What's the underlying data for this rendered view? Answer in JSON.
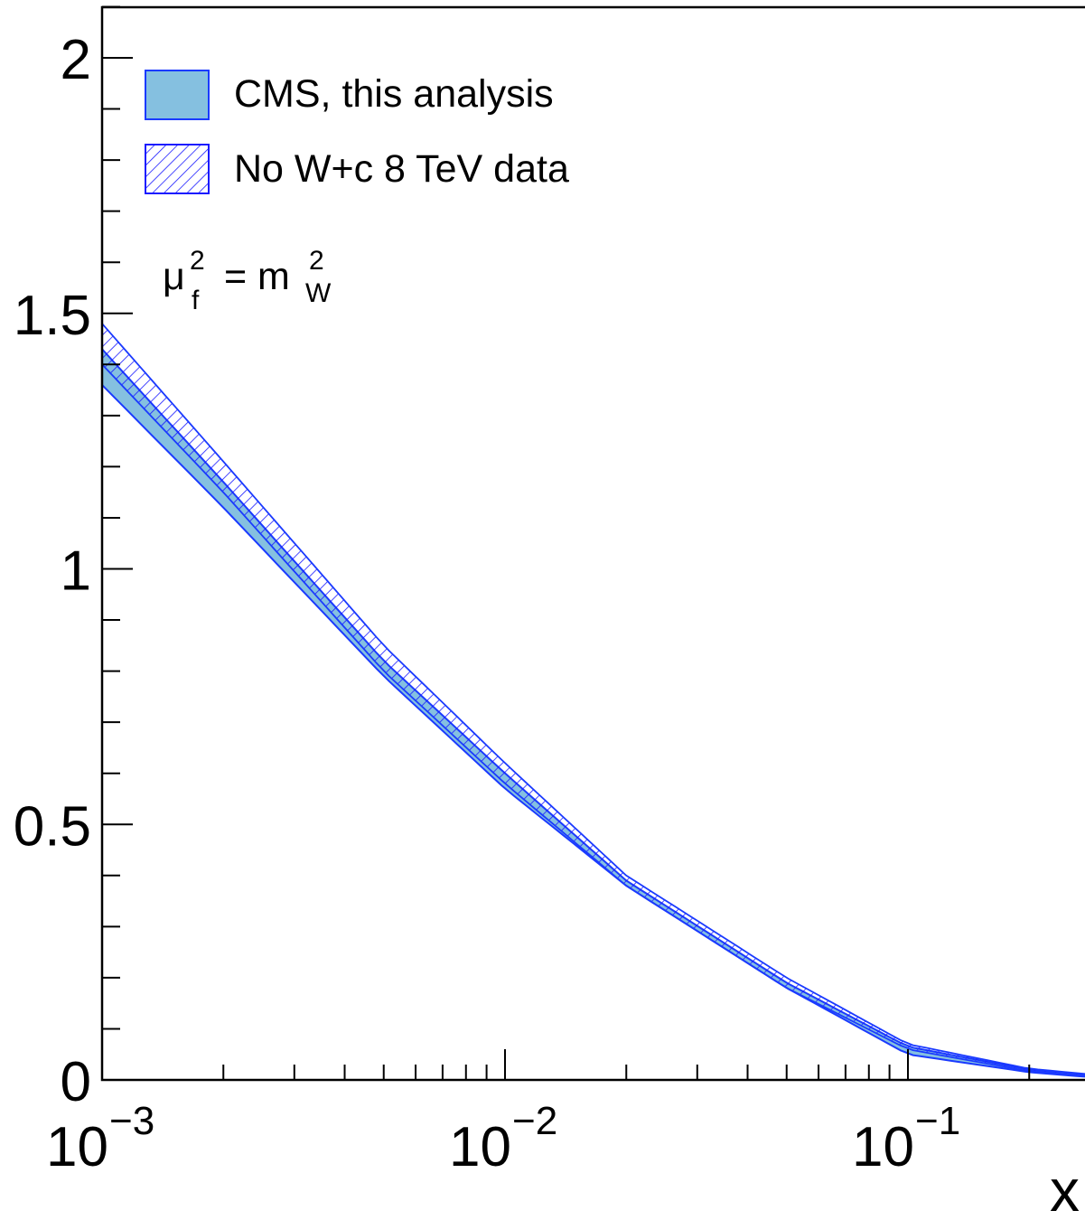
{
  "chart_data": {
    "type": "area",
    "title": "",
    "xlabel": "x",
    "ylabel": "",
    "xscale": "log",
    "xlim": [
      0.001,
      0.3
    ],
    "ylim": [
      0,
      2.1
    ],
    "grid": false,
    "legend_position": "top-left",
    "x_tick_labels": [
      {
        "x": 0.001,
        "base": "10",
        "exp": "−3"
      },
      {
        "x": 0.01,
        "base": "10",
        "exp": "−2"
      },
      {
        "x": 0.1,
        "base": "10",
        "exp": "−1"
      }
    ],
    "y_tick_labels": [
      {
        "y": 0,
        "label": "0"
      },
      {
        "y": 0.5,
        "label": "0.5"
      },
      {
        "y": 1,
        "label": "1"
      },
      {
        "y": 1.5,
        "label": "1.5"
      },
      {
        "y": 2,
        "label": "2"
      }
    ],
    "annotation": {
      "mu": "μ",
      "mu_sup": "2",
      "mu_sub": "f",
      "eq": " = m",
      "m_sup": "2",
      "m_sub": "W"
    },
    "legend": [
      {
        "label": "CMS, this analysis",
        "style": "filled"
      },
      {
        "label": "No W+c 8 TeV data",
        "style": "hatched"
      }
    ],
    "series": [
      {
        "name": "CMS, this analysis",
        "x": [
          0.001,
          0.002,
          0.005,
          0.01,
          0.02,
          0.05,
          0.1,
          0.2,
          0.3
        ],
        "lower": [
          1.36,
          1.12,
          0.79,
          0.57,
          0.38,
          0.18,
          0.05,
          0.015,
          0.004
        ],
        "upper": [
          1.43,
          1.17,
          0.82,
          0.6,
          0.39,
          0.19,
          0.065,
          0.02,
          0.008
        ]
      },
      {
        "name": "No W+c 8 TeV data",
        "x": [
          0.001,
          0.002,
          0.005,
          0.01,
          0.02,
          0.05,
          0.1,
          0.2,
          0.3
        ],
        "lower": [
          1.4,
          1.15,
          0.8,
          0.58,
          0.38,
          0.18,
          0.06,
          0.017,
          0.005
        ],
        "upper": [
          1.48,
          1.21,
          0.85,
          0.62,
          0.4,
          0.2,
          0.07,
          0.022,
          0.009
        ]
      }
    ],
    "colors": {
      "band_fill": "#85c0e0",
      "band_line": "#1a3aff",
      "hatch": "#1a1aff",
      "axis": "#000000"
    }
  }
}
